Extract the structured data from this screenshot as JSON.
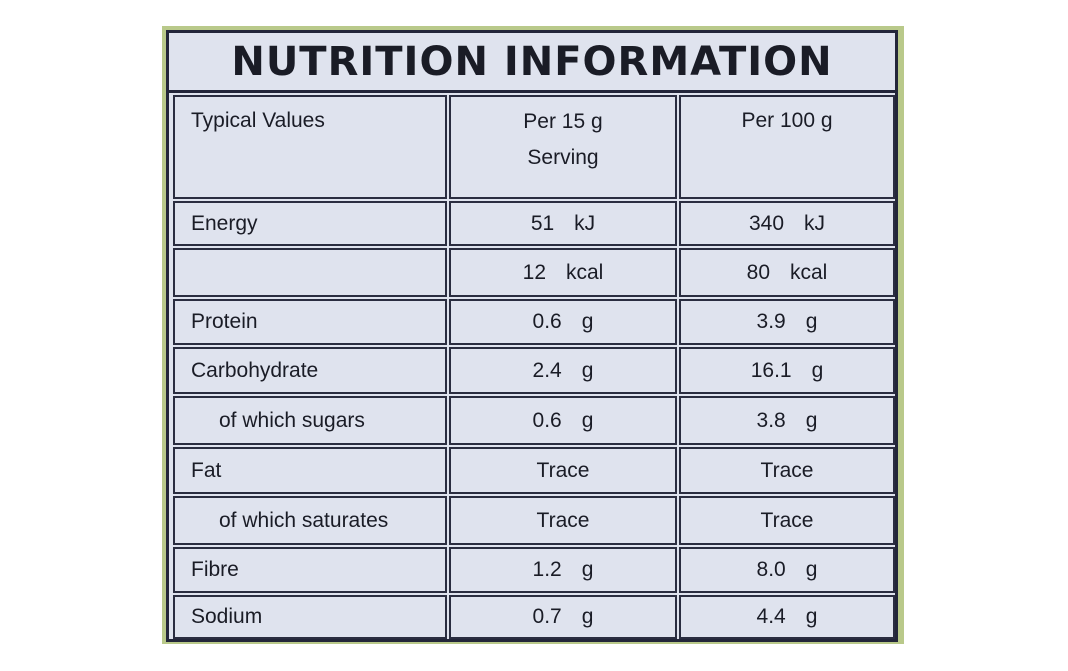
{
  "panel": {
    "title": "NUTRITION INFORMATION",
    "background": "#dfe3ee",
    "ink": "#1a1c26"
  },
  "table": {
    "headers": {
      "label": "Typical Values",
      "serving_line1": "Per  15 g",
      "serving_line2": "Serving",
      "per100": "Per 100 g"
    },
    "rows": [
      {
        "label": "Energy",
        "serving_value": "51",
        "serving_unit": "kJ",
        "per100_value": "340",
        "per100_unit": "kJ"
      },
      {
        "label": "",
        "serving_value": "12",
        "serving_unit": "kcal",
        "per100_value": "80",
        "per100_unit": "kcal"
      },
      {
        "label": "Protein",
        "serving_value": "0.6",
        "serving_unit": "g",
        "per100_value": "3.9",
        "per100_unit": "g"
      },
      {
        "label": "Carbohydrate",
        "serving_value": "2.4",
        "serving_unit": "g",
        "per100_value": "16.1",
        "per100_unit": "g"
      },
      {
        "label": "of which sugars",
        "serving_value": "0.6",
        "serving_unit": "g",
        "per100_value": "3.8",
        "per100_unit": "g"
      },
      {
        "label": "Fat",
        "serving_value": "Trace",
        "serving_unit": "",
        "per100_value": "Trace",
        "per100_unit": ""
      },
      {
        "label": "of which saturates",
        "serving_value": "Trace",
        "serving_unit": "",
        "per100_value": "Trace",
        "per100_unit": ""
      },
      {
        "label": "Fibre",
        "serving_value": "1.2",
        "serving_unit": "g",
        "per100_value": "8.0",
        "per100_unit": "g"
      },
      {
        "label": "Sodium",
        "serving_value": "0.7",
        "serving_unit": "g",
        "per100_value": "4.4",
        "per100_unit": "g"
      }
    ]
  }
}
